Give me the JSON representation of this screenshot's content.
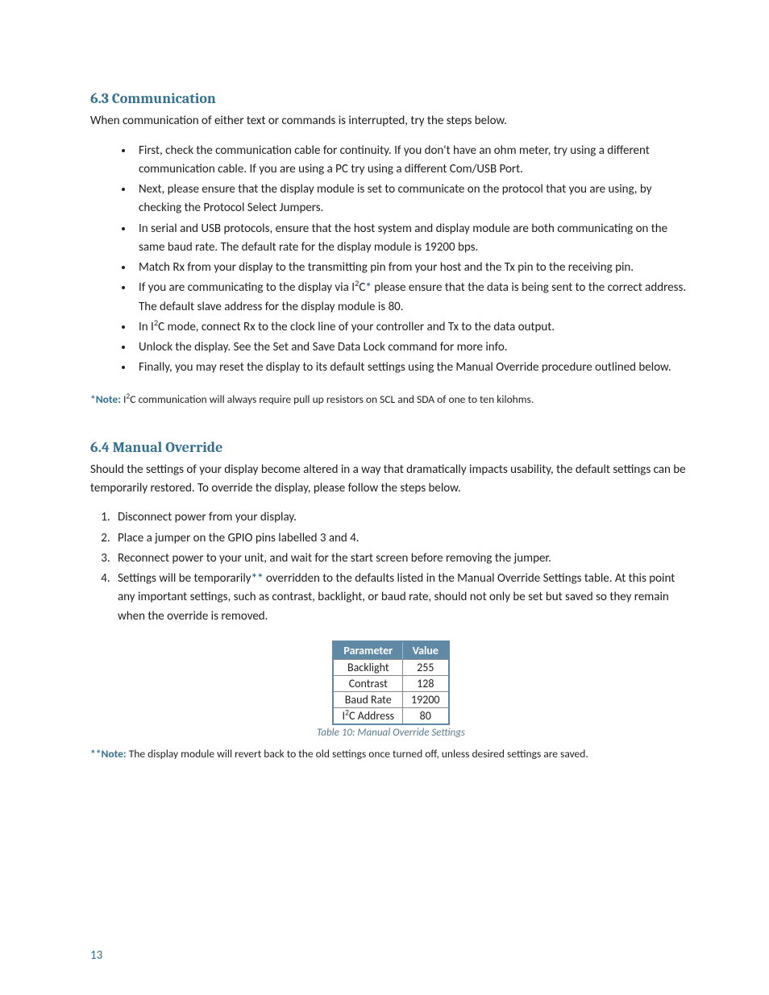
{
  "colors": {
    "heading": "#36708f",
    "body_text": "#1b1b1b",
    "note_label": "#36708f",
    "table_header_bg": "#5f89a4",
    "table_header_text": "#ffffff",
    "table_border": "#5f89a4",
    "caption": "#5c7a8e",
    "page_number": "#36708f",
    "background": "#ffffff"
  },
  "typography": {
    "heading_font": "Cambria",
    "body_font": "Calibri",
    "heading_size_pt": 14,
    "body_size_pt": 11,
    "note_size_pt": 10
  },
  "section63": {
    "heading": "6.3 Communication",
    "intro": "When communication of either text or commands is interrupted, try the steps below.",
    "bullets": [
      "First, check the communication cable for continuity.  If you don't have an ohm meter, try using a different communication cable.  If you are using a PC try using a different Com/USB Port.",
      "Next, please ensure that the display module is set to communicate on the protocol that you are using, by checking the Protocol Select Jumpers.",
      "In serial and USB protocols, ensure that the host system and display module are both communicating on the same baud rate.  The default rate for the display module is 19200 bps.",
      "Match Rx from your display to the transmitting pin from your host and the Tx pin to the receiving pin.",
      "__I2C_STAR__",
      "__I2C_MODE__",
      "Unlock the display.  See the Set and Save Data Lock command for more info.",
      "Finally, you may reset the display to its default settings using the Manual Override procedure outlined below."
    ],
    "bullet_i2c_star_pre": "If you are communicating to the display via I",
    "bullet_i2c_star_mid": "C",
    "bullet_i2c_star_star": "*",
    "bullet_i2c_star_post": " please ensure that the data is being sent to the correct address.  The default slave address for the display module is 80.",
    "bullet_i2c_mode_pre": "In I",
    "bullet_i2c_mode_post": "C mode, connect Rx to the clock line of your controller and Tx to the data output.",
    "note_label": "*Note:",
    "note_text_pre": " I",
    "note_text_post": "C communication will always require pull up resistors on SCL and SDA of one to ten kilohms."
  },
  "section64": {
    "heading": "6.4 Manual Override",
    "intro": "Should the settings of your display become altered in a way that dramatically impacts usability, the default settings can be temporarily restored.  To override the display, please follow the steps below.",
    "steps": [
      "Disconnect power from your display.",
      "Place a jumper on the GPIO pins labelled 3 and 4.",
      "Reconnect power to your unit, and wait for the start screen before removing the jumper.",
      "__STEP4__"
    ],
    "step4_pre": "Settings will be temporarily",
    "step4_star": "**",
    "step4_post": " overridden to the defaults listed in the Manual Override Settings table.  At this point any important settings, such as contrast, backlight, or baud rate, should not only be set but saved so they remain when the override is removed.",
    "table": {
      "columns": [
        "Parameter",
        "Value"
      ],
      "rows": [
        [
          "Backlight",
          "255"
        ],
        [
          "Contrast",
          "128"
        ],
        [
          "Baud Rate",
          "19200"
        ],
        [
          "__I2C_ADDR__",
          "80"
        ]
      ],
      "i2c_addr_pre": "I",
      "i2c_addr_post": "C Address",
      "caption": "Table 10: Manual Override Settings"
    },
    "note_label": "**Note:",
    "note_text": " The display module will revert back to the old settings once turned off, unless desired settings are saved."
  },
  "page_number": "13"
}
